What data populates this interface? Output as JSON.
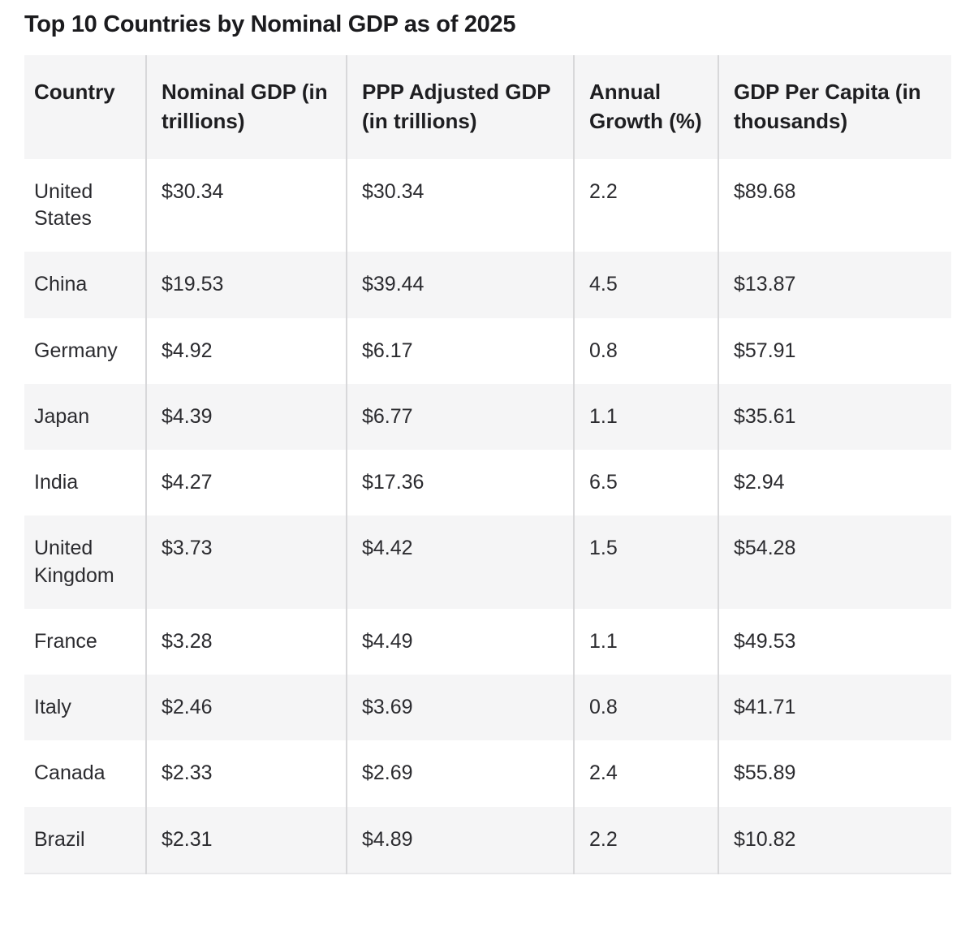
{
  "page_title": "Top 10 Countries by Nominal GDP as of 2025",
  "chart_data": {
    "type": "table",
    "title": "Top 10 Countries by Nominal GDP as of 2025",
    "columns": [
      "Country",
      "Nominal GDP (in trillions)",
      "PPP Adjusted GDP (in trillions)",
      "Annual Growth (%)",
      "GDP Per Capita (in thousands)"
    ],
    "rows": [
      [
        "United States",
        "$30.34",
        "$30.34",
        "2.2",
        "$89.68"
      ],
      [
        "China",
        "$19.53",
        "$39.44",
        "4.5",
        "$13.87"
      ],
      [
        "Germany",
        "$4.92",
        "$6.17",
        "0.8",
        "$57.91"
      ],
      [
        "Japan",
        "$4.39",
        "$6.77",
        "1.1",
        "$35.61"
      ],
      [
        "India",
        "$4.27",
        "$17.36",
        "6.5",
        "$2.94"
      ],
      [
        "United Kingdom",
        "$3.73",
        "$4.42",
        "1.5",
        "$54.28"
      ],
      [
        "France",
        "$3.28",
        "$4.49",
        "1.1",
        "$49.53"
      ],
      [
        "Italy",
        "$2.46",
        "$3.69",
        "0.8",
        "$41.71"
      ],
      [
        "Canada",
        "$2.33",
        "$2.69",
        "2.4",
        "$55.89"
      ],
      [
        "Brazil",
        "$2.31",
        "$4.89",
        "2.2",
        "$10.82"
      ]
    ],
    "numeric": {
      "countries": [
        "United States",
        "China",
        "Germany",
        "Japan",
        "India",
        "United Kingdom",
        "France",
        "Italy",
        "Canada",
        "Brazil"
      ],
      "nominal_gdp_trillions": [
        30.34,
        19.53,
        4.92,
        4.39,
        4.27,
        3.73,
        3.28,
        2.46,
        2.33,
        2.31
      ],
      "ppp_adjusted_gdp_trillions": [
        30.34,
        39.44,
        6.17,
        6.77,
        17.36,
        4.42,
        4.49,
        3.69,
        2.69,
        4.89
      ],
      "annual_growth_pct": [
        2.2,
        4.5,
        0.8,
        1.1,
        6.5,
        1.5,
        1.1,
        0.8,
        2.4,
        2.2
      ],
      "gdp_per_capita_thousands": [
        89.68,
        13.87,
        57.91,
        35.61,
        2.94,
        54.28,
        49.53,
        41.71,
        55.89,
        10.82
      ]
    }
  },
  "colors": {
    "background": "#ffffff",
    "row_stripe": "#f5f5f6",
    "column_divider": "#d8d8da",
    "title_text": "#1b1b1e",
    "body_text": "#2b2b2f"
  }
}
